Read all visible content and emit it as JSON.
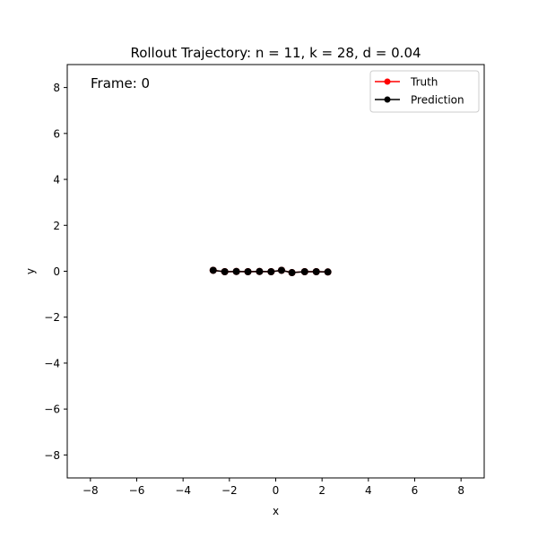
{
  "chart_data": {
    "type": "line",
    "title": "Rollout Trajectory: n = 11, k = 28, d = 0.04",
    "xlabel": "x",
    "ylabel": "y",
    "xlim": [
      -9,
      9
    ],
    "ylim": [
      -9,
      9
    ],
    "xticks": [
      -8,
      -6,
      -4,
      -2,
      0,
      2,
      4,
      6,
      8
    ],
    "yticks": [
      -8,
      -6,
      -4,
      -2,
      0,
      2,
      4,
      6,
      8
    ],
    "tick_labels_x": [
      "−8",
      "−6",
      "−4",
      "−2",
      "0",
      "2",
      "4",
      "6",
      "8"
    ],
    "tick_labels_y": [
      "−8",
      "−6",
      "−4",
      "−2",
      "0",
      "2",
      "4",
      "6",
      "8"
    ],
    "grid": false,
    "legend_position": "top-right",
    "annotation": "Frame: 0",
    "series": [
      {
        "name": "Truth",
        "color": "#ff0000",
        "marker": "circle",
        "x": [
          -2.7,
          -2.2,
          -1.7,
          -1.2,
          -0.7,
          -0.2,
          0.25,
          0.7,
          1.25,
          1.75,
          2.25
        ],
        "y": [
          0.04,
          -0.02,
          -0.01,
          -0.02,
          -0.01,
          -0.02,
          0.04,
          -0.06,
          -0.02,
          -0.02,
          -0.03
        ]
      },
      {
        "name": "Prediction",
        "color": "#000000",
        "marker": "circle",
        "x": [
          -2.7,
          -2.2,
          -1.7,
          -1.2,
          -0.7,
          -0.2,
          0.25,
          0.7,
          1.25,
          1.75,
          2.25
        ],
        "y": [
          0.04,
          -0.02,
          -0.01,
          -0.02,
          -0.01,
          -0.02,
          0.04,
          -0.06,
          -0.02,
          -0.02,
          -0.03
        ]
      }
    ]
  }
}
